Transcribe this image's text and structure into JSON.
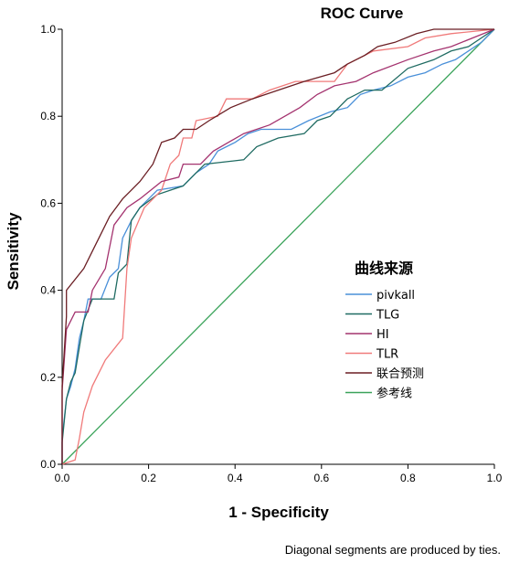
{
  "chart_data": {
    "type": "line",
    "title": "ROC Curve",
    "xlabel": "1 - Specificity",
    "ylabel": "Sensitivity",
    "xlim": [
      0,
      1
    ],
    "ylim": [
      0,
      1
    ],
    "x_ticks": [
      "0.0",
      "0.2",
      "0.4",
      "0.6",
      "0.8",
      "1.0"
    ],
    "y_ticks": [
      "0.0",
      "0.2",
      "0.4",
      "0.6",
      "0.8",
      "1.0"
    ],
    "grid": false,
    "legend_title": "曲线来源",
    "legend_position": "right-middle",
    "footnote": "Diagonal segments are produced by ties.",
    "series": [
      {
        "name": "pivkall",
        "color": "#4a90d9",
        "points": [
          [
            0,
            0
          ],
          [
            0,
            0.06
          ],
          [
            0.01,
            0.15
          ],
          [
            0.02,
            0.18
          ],
          [
            0.03,
            0.22
          ],
          [
            0.04,
            0.29
          ],
          [
            0.05,
            0.33
          ],
          [
            0.06,
            0.38
          ],
          [
            0.09,
            0.38
          ],
          [
            0.11,
            0.43
          ],
          [
            0.13,
            0.45
          ],
          [
            0.14,
            0.52
          ],
          [
            0.16,
            0.56
          ],
          [
            0.18,
            0.59
          ],
          [
            0.22,
            0.63
          ],
          [
            0.28,
            0.64
          ],
          [
            0.31,
            0.67
          ],
          [
            0.34,
            0.69
          ],
          [
            0.36,
            0.72
          ],
          [
            0.4,
            0.74
          ],
          [
            0.43,
            0.76
          ],
          [
            0.46,
            0.77
          ],
          [
            0.53,
            0.77
          ],
          [
            0.57,
            0.79
          ],
          [
            0.62,
            0.81
          ],
          [
            0.66,
            0.82
          ],
          [
            0.69,
            0.85
          ],
          [
            0.72,
            0.86
          ],
          [
            0.76,
            0.87
          ],
          [
            0.8,
            0.89
          ],
          [
            0.84,
            0.9
          ],
          [
            0.88,
            0.92
          ],
          [
            0.91,
            0.93
          ],
          [
            0.94,
            0.95
          ],
          [
            0.97,
            0.97
          ],
          [
            1.0,
            1.0
          ]
        ]
      },
      {
        "name": "TLG",
        "color": "#1f6b62",
        "points": [
          [
            0,
            0
          ],
          [
            0,
            0.05
          ],
          [
            0.01,
            0.15
          ],
          [
            0.02,
            0.19
          ],
          [
            0.03,
            0.21
          ],
          [
            0.04,
            0.27
          ],
          [
            0.05,
            0.33
          ],
          [
            0.07,
            0.38
          ],
          [
            0.12,
            0.38
          ],
          [
            0.13,
            0.44
          ],
          [
            0.15,
            0.46
          ],
          [
            0.16,
            0.56
          ],
          [
            0.18,
            0.59
          ],
          [
            0.22,
            0.62
          ],
          [
            0.28,
            0.64
          ],
          [
            0.33,
            0.69
          ],
          [
            0.42,
            0.7
          ],
          [
            0.45,
            0.73
          ],
          [
            0.5,
            0.75
          ],
          [
            0.56,
            0.76
          ],
          [
            0.59,
            0.79
          ],
          [
            0.62,
            0.8
          ],
          [
            0.66,
            0.84
          ],
          [
            0.7,
            0.86
          ],
          [
            0.74,
            0.86
          ],
          [
            0.8,
            0.91
          ],
          [
            0.86,
            0.93
          ],
          [
            0.9,
            0.95
          ],
          [
            0.94,
            0.96
          ],
          [
            0.97,
            0.98
          ],
          [
            1.0,
            1.0
          ]
        ]
      },
      {
        "name": "HI",
        "color": "#a4336f",
        "points": [
          [
            0,
            0
          ],
          [
            0,
            0.17
          ],
          [
            0.01,
            0.31
          ],
          [
            0.03,
            0.35
          ],
          [
            0.06,
            0.35
          ],
          [
            0.07,
            0.4
          ],
          [
            0.1,
            0.45
          ],
          [
            0.12,
            0.55
          ],
          [
            0.15,
            0.59
          ],
          [
            0.18,
            0.61
          ],
          [
            0.23,
            0.65
          ],
          [
            0.27,
            0.66
          ],
          [
            0.28,
            0.69
          ],
          [
            0.32,
            0.69
          ],
          [
            0.35,
            0.72
          ],
          [
            0.42,
            0.76
          ],
          [
            0.48,
            0.78
          ],
          [
            0.55,
            0.82
          ],
          [
            0.59,
            0.85
          ],
          [
            0.63,
            0.87
          ],
          [
            0.68,
            0.88
          ],
          [
            0.72,
            0.9
          ],
          [
            0.8,
            0.93
          ],
          [
            0.86,
            0.95
          ],
          [
            0.9,
            0.96
          ],
          [
            0.95,
            0.98
          ],
          [
            1.0,
            1.0
          ]
        ]
      },
      {
        "name": "TLR",
        "color": "#f07a7a",
        "points": [
          [
            0,
            0
          ],
          [
            0.03,
            0.01
          ],
          [
            0.04,
            0.06
          ],
          [
            0.05,
            0.12
          ],
          [
            0.07,
            0.18
          ],
          [
            0.1,
            0.24
          ],
          [
            0.14,
            0.29
          ],
          [
            0.15,
            0.45
          ],
          [
            0.16,
            0.52
          ],
          [
            0.19,
            0.59
          ],
          [
            0.23,
            0.63
          ],
          [
            0.25,
            0.69
          ],
          [
            0.27,
            0.71
          ],
          [
            0.28,
            0.75
          ],
          [
            0.3,
            0.75
          ],
          [
            0.31,
            0.79
          ],
          [
            0.36,
            0.8
          ],
          [
            0.38,
            0.84
          ],
          [
            0.44,
            0.84
          ],
          [
            0.48,
            0.86
          ],
          [
            0.54,
            0.88
          ],
          [
            0.63,
            0.88
          ],
          [
            0.66,
            0.92
          ],
          [
            0.72,
            0.95
          ],
          [
            0.8,
            0.96
          ],
          [
            0.84,
            0.98
          ],
          [
            0.9,
            0.99
          ],
          [
            1.0,
            1.0
          ]
        ]
      },
      {
        "name": "联合预测",
        "color": "#6b1f24",
        "points": [
          [
            0,
            0
          ],
          [
            0,
            0.18
          ],
          [
            0.01,
            0.34
          ],
          [
            0.01,
            0.4
          ],
          [
            0.05,
            0.45
          ],
          [
            0.07,
            0.49
          ],
          [
            0.09,
            0.53
          ],
          [
            0.11,
            0.57
          ],
          [
            0.14,
            0.61
          ],
          [
            0.16,
            0.63
          ],
          [
            0.18,
            0.65
          ],
          [
            0.21,
            0.69
          ],
          [
            0.23,
            0.74
          ],
          [
            0.26,
            0.75
          ],
          [
            0.28,
            0.77
          ],
          [
            0.31,
            0.77
          ],
          [
            0.34,
            0.79
          ],
          [
            0.39,
            0.82
          ],
          [
            0.44,
            0.84
          ],
          [
            0.5,
            0.86
          ],
          [
            0.56,
            0.88
          ],
          [
            0.63,
            0.9
          ],
          [
            0.66,
            0.92
          ],
          [
            0.7,
            0.94
          ],
          [
            0.73,
            0.96
          ],
          [
            0.77,
            0.97
          ],
          [
            0.82,
            0.99
          ],
          [
            0.86,
            1.0
          ],
          [
            1.0,
            1.0
          ]
        ]
      },
      {
        "name": "参考线",
        "color": "#3aa35a",
        "points": [
          [
            0,
            0
          ],
          [
            1,
            1
          ]
        ]
      }
    ]
  }
}
